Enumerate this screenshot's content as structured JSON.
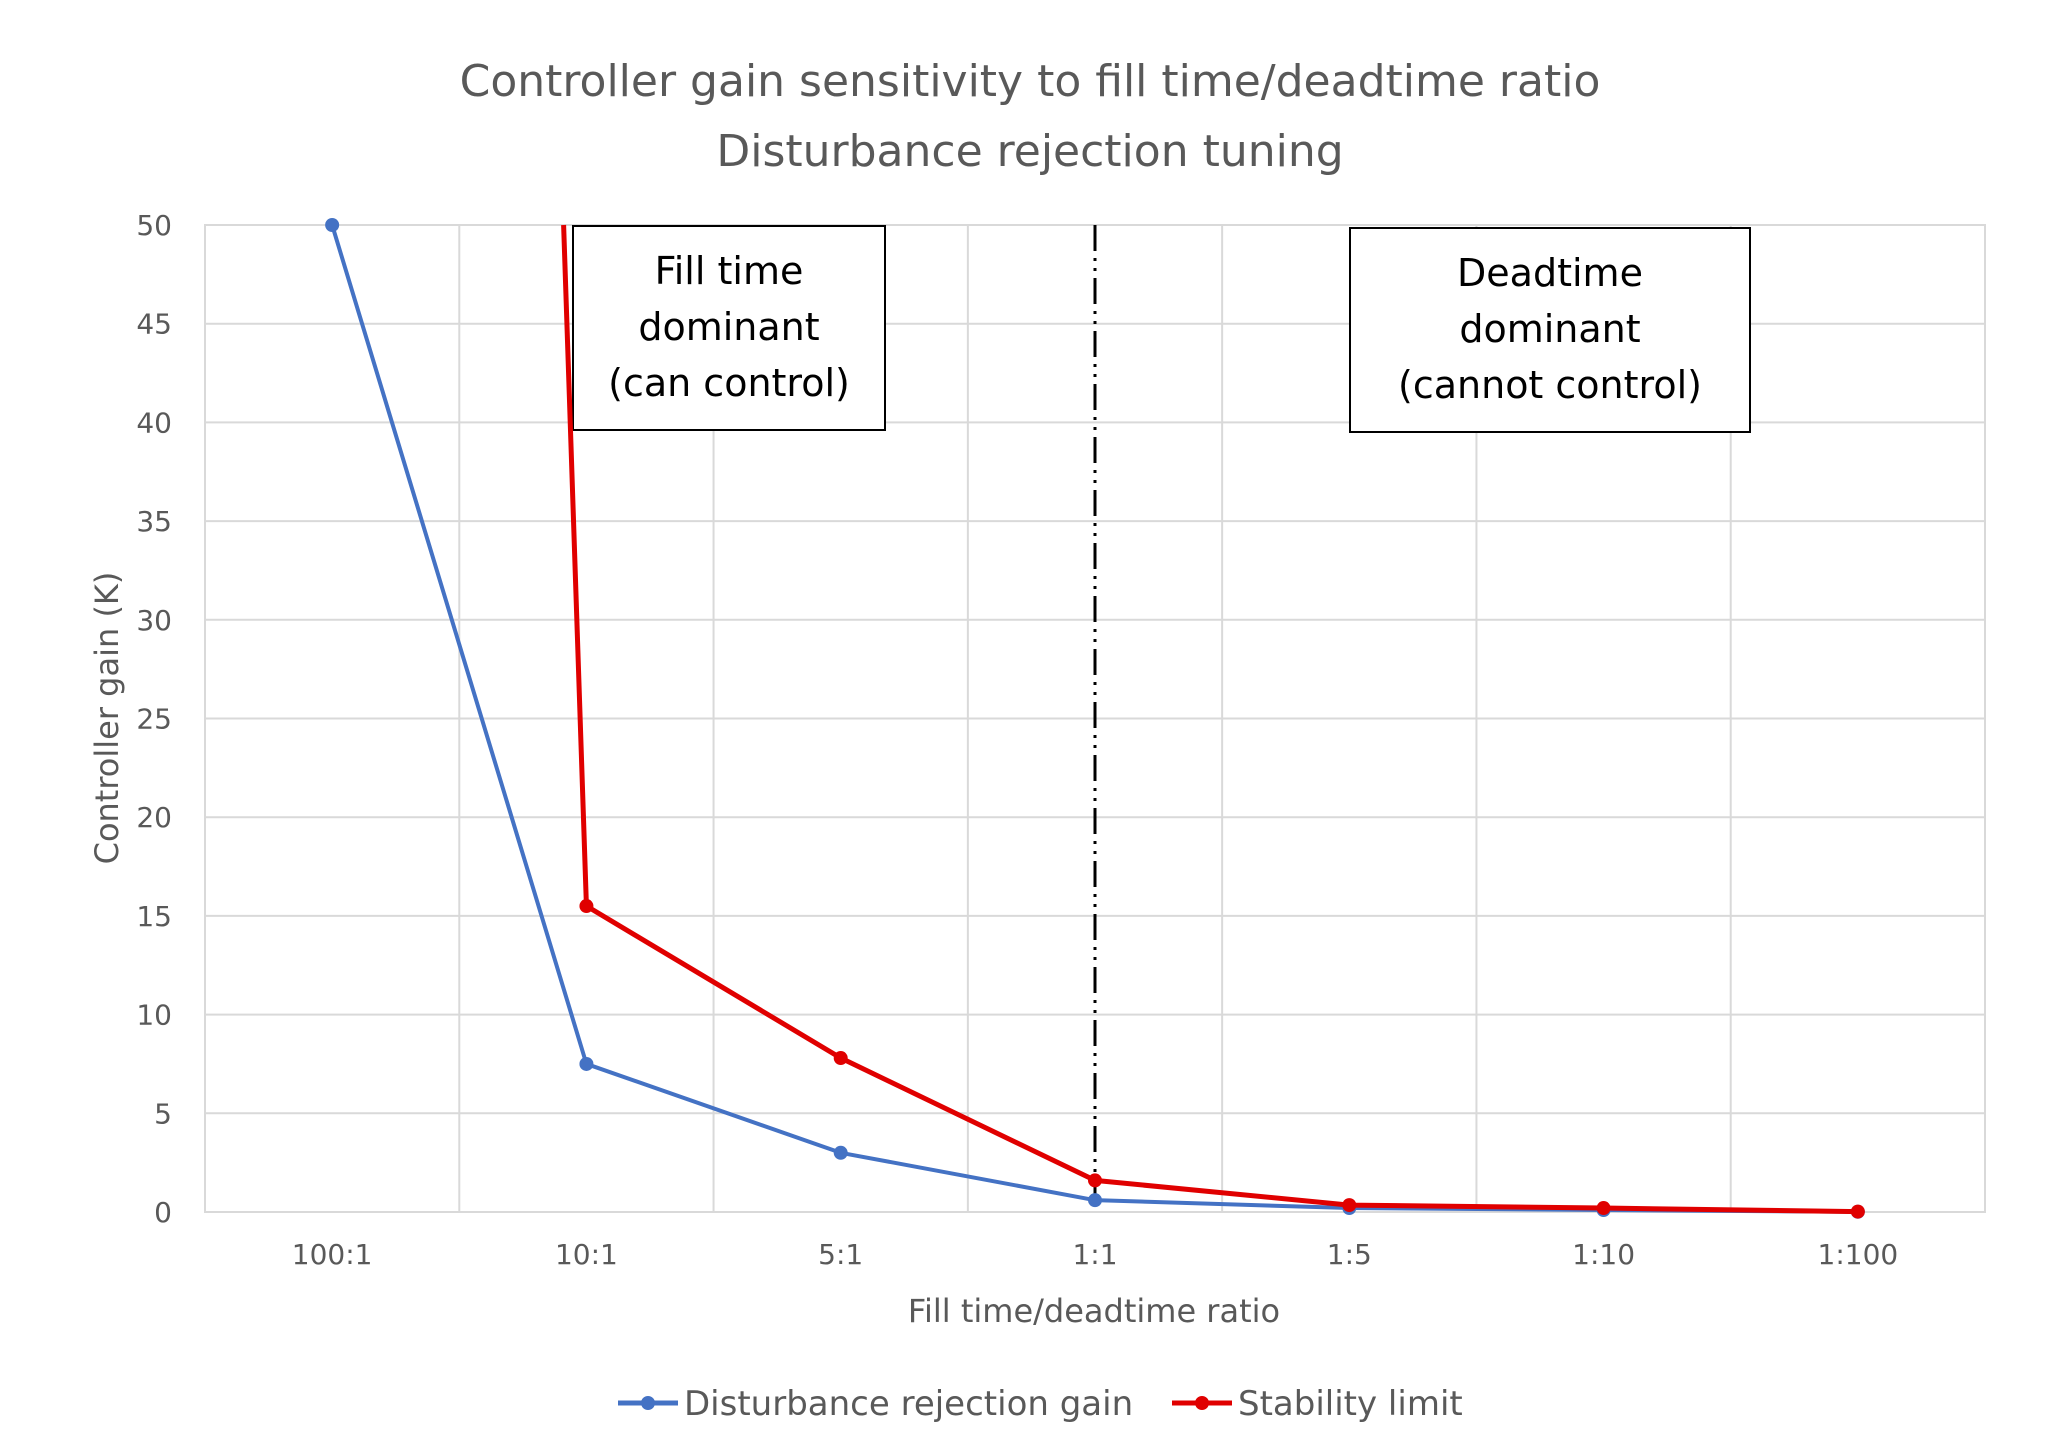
{
  "chart_data": {
    "type": "line",
    "title_lines": [
      "Controller gain sensitivity to fill time/deadtime ratio",
      "Disturbance rejection tuning"
    ],
    "xlabel": "Fill time/deadtime ratio",
    "ylabel": "Controller gain (K)",
    "categories": [
      "100:1",
      "10:1",
      "5:1",
      "1:1",
      "1:5",
      "1:10",
      "1:100"
    ],
    "ylim": [
      0,
      50
    ],
    "yticks": [
      "0",
      "5",
      "10",
      "15",
      "20",
      "25",
      "30",
      "35",
      "40",
      "45",
      "50"
    ],
    "grid": true,
    "legend_position": "bottom",
    "series": [
      {
        "name": "Disturbance rejection gain",
        "color": "#4472C4",
        "values": [
          50,
          7.5,
          3.0,
          0.6,
          0.2,
          0.1,
          0.01
        ]
      },
      {
        "name": "Stability limit",
        "color": "#E00000",
        "values": [
          null,
          15.5,
          7.8,
          1.6,
          0.35,
          0.2,
          0.02
        ],
        "note_offscale_start": 50
      }
    ],
    "divider_at_category": "1:1",
    "annotations": [
      {
        "lines": [
          "Fill time",
          "dominant",
          "(can control)"
        ]
      },
      {
        "lines": [
          "Deadtime",
          "dominant",
          "(cannot control)"
        ]
      }
    ]
  }
}
